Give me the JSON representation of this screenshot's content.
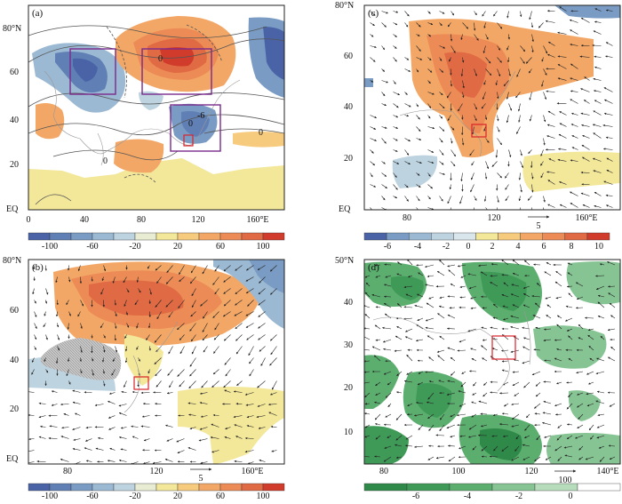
{
  "figure": {
    "panels": [
      {
        "id": "a",
        "label": "(a)",
        "y_ticks": [
          "80°N",
          "60",
          "40",
          "20",
          "EQ"
        ],
        "x_ticks": [
          "0",
          "40",
          "80",
          "120",
          "160°E"
        ],
        "contour_labels": [
          "0",
          "0",
          "-6",
          "0",
          "0"
        ],
        "colorbar_ticks": [
          "-100",
          "-60",
          "-20",
          "20",
          "60",
          "100"
        ]
      },
      {
        "id": "b",
        "label": "(b)",
        "y_ticks": [
          "80°N",
          "60",
          "40",
          "20",
          "EQ"
        ],
        "x_ticks": [
          "80",
          "120",
          "160°E"
        ],
        "vector_ref": "5",
        "colorbar_ticks": [
          "-100",
          "-60",
          "-20",
          "20",
          "60",
          "100"
        ]
      },
      {
        "id": "c",
        "label": "(c)",
        "y_ticks": [
          "80°N",
          "60",
          "40",
          "20",
          "EQ"
        ],
        "x_ticks": [
          "80",
          "120",
          "160°E"
        ],
        "vector_ref": "5",
        "colorbar_ticks": [
          "-6",
          "-4",
          "-2",
          "0",
          "2",
          "4",
          "6",
          "8",
          "10"
        ]
      },
      {
        "id": "d",
        "label": "(d)",
        "y_ticks": [
          "50°N",
          "40",
          "30",
          "20",
          "10"
        ],
        "x_ticks": [
          "80",
          "100",
          "120",
          "140°E"
        ],
        "vector_ref": "100",
        "colorbar_ticks": [
          "-6",
          "-4",
          "-2",
          "0"
        ]
      }
    ]
  },
  "colors": {
    "diverging_12": [
      "#4a63a6",
      "#607fb5",
      "#7a9bc3",
      "#9cb9d3",
      "#bdd3e0",
      "#e7ecd3",
      "#f3e79a",
      "#f7cb7d",
      "#f3a766",
      "#ec8b55",
      "#e06a43",
      "#d13b2b"
    ],
    "c_scale": [
      "#4a63a6",
      "#7a9bc3",
      "#9cb9d3",
      "#bdd3e0",
      "#d9e6ec",
      "#f3e79a",
      "#f7cb7d",
      "#f3a766",
      "#ec8b55",
      "#e06a43",
      "#d13b2b"
    ],
    "green_scale": [
      "#2f8a4a",
      "#3f9a58",
      "#5cae6f",
      "#86c493",
      "#b7dcbc",
      "#ffffff"
    ]
  }
}
